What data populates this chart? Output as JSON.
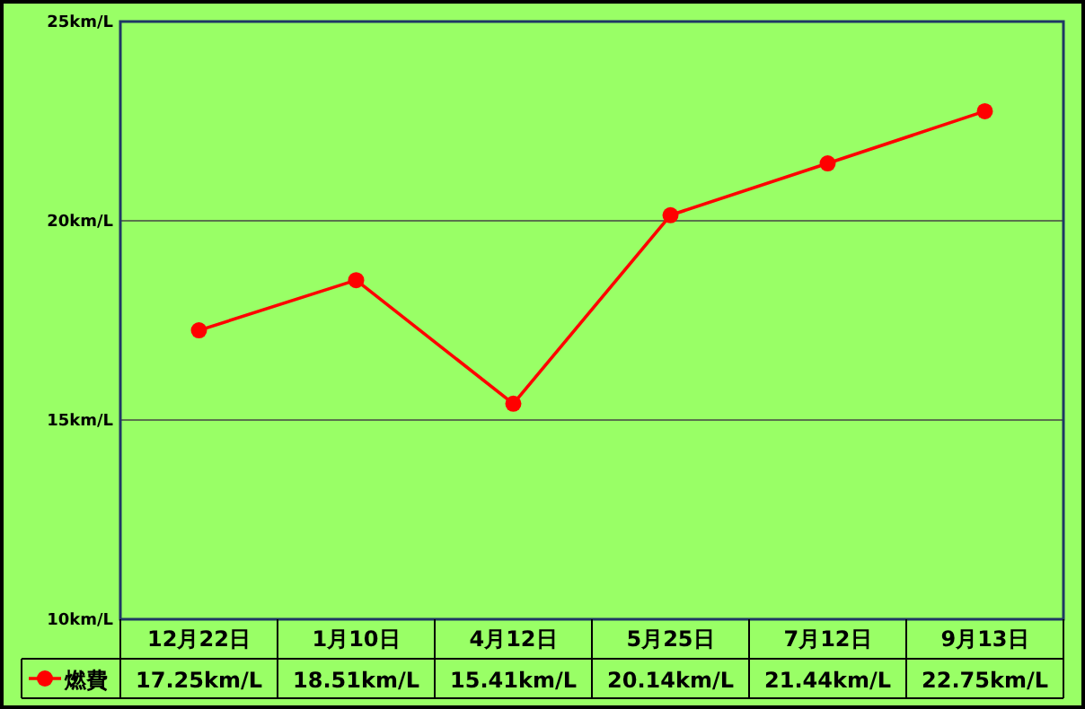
{
  "chart_data": {
    "type": "line",
    "categories": [
      "12月22日",
      "1月10日",
      "4月12日",
      "5月25日",
      "7月12日",
      "9月13日"
    ],
    "series": [
      {
        "name": "燃費",
        "color": "#ff0000",
        "values": [
          17.25,
          18.51,
          15.41,
          20.14,
          21.44,
          22.75
        ],
        "value_labels": [
          "17.25km/L",
          "18.51km/L",
          "15.41km/L",
          "20.14km/L",
          "21.44km/L",
          "22.75km/L"
        ]
      }
    ],
    "ylim": [
      10,
      25
    ],
    "yticks": [
      {
        "value": 10,
        "label": "10km/L"
      },
      {
        "value": 15,
        "label": "15km/L"
      },
      {
        "value": 20,
        "label": "20km/L"
      },
      {
        "value": 25,
        "label": "25km/L"
      }
    ],
    "grid": "y",
    "legend": "bottom left",
    "marker": "circle",
    "line_style": "solid"
  }
}
